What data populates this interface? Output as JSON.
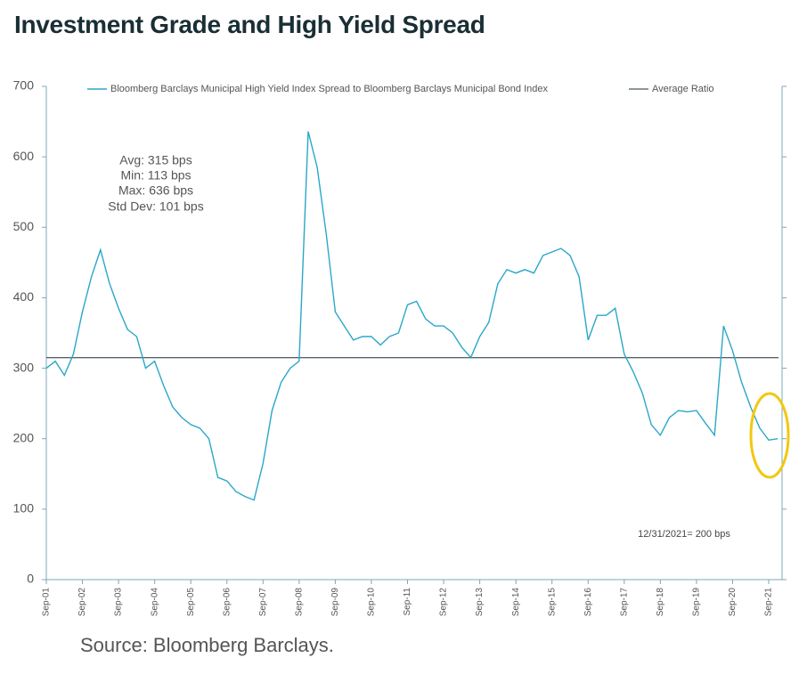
{
  "chart_data": {
    "type": "line",
    "title": "Investment Grade and High Yield Spread",
    "source": "Source: Bloomberg Barclays.",
    "categories": [
      "Sep-01",
      null,
      null,
      null,
      "Sep-02",
      null,
      null,
      null,
      "Sep-03",
      null,
      null,
      null,
      "Sep-04",
      null,
      null,
      null,
      "Sep-05",
      null,
      null,
      null,
      "Sep-06",
      null,
      null,
      null,
      "Sep-07",
      null,
      null,
      null,
      "Sep-08",
      null,
      null,
      null,
      "Sep-09",
      null,
      null,
      null,
      "Sep-10",
      null,
      null,
      null,
      "Sep-11",
      null,
      null,
      null,
      "Sep-12",
      null,
      null,
      null,
      "Sep-13",
      null,
      null,
      null,
      "Sep-14",
      null,
      null,
      null,
      "Sep-15",
      null,
      null,
      null,
      "Sep-16",
      null,
      null,
      null,
      "Sep-17",
      null,
      null,
      null,
      "Sep-18",
      null,
      null,
      null,
      "Sep-19",
      null,
      null,
      null,
      "Sep-20",
      null,
      null,
      null,
      "Sep-21",
      null
    ],
    "series": [
      {
        "name": "Bloomberg Barclays Municipal High Yield Index Spread to Bloomberg Barclays Municipal Bond Index",
        "color": "#2aa7c9",
        "values": [
          300,
          310,
          290,
          320,
          380,
          430,
          468,
          420,
          385,
          355,
          345,
          300,
          310,
          275,
          245,
          230,
          220,
          215,
          200,
          145,
          140,
          125,
          118,
          113,
          165,
          240,
          280,
          300,
          310,
          636,
          585,
          490,
          380,
          360,
          340,
          345,
          345,
          333,
          345,
          350,
          390,
          395,
          370,
          360,
          360,
          350,
          330,
          315,
          345,
          365,
          420,
          440,
          435,
          440,
          435,
          460,
          465,
          470,
          460,
          430,
          340,
          375,
          375,
          385,
          320,
          295,
          265,
          220,
          205,
          230,
          240,
          238,
          240,
          222,
          205,
          360,
          325,
          280,
          245,
          215,
          198,
          200
        ]
      }
    ],
    "average_line": {
      "name": "Average Ratio",
      "value": 315,
      "color": "#1a2e35"
    },
    "stats": [
      "Avg: 315 bps",
      "Min: 113 bps",
      "Max: 636 bps",
      "Std Dev: 101 bps"
    ],
    "end_note": "12/31/2021= 200 bps",
    "ylim": [
      0,
      700
    ],
    "yticks": [
      0,
      100,
      200,
      300,
      400,
      500,
      600,
      700
    ],
    "highlight_color": "#f2c811"
  }
}
